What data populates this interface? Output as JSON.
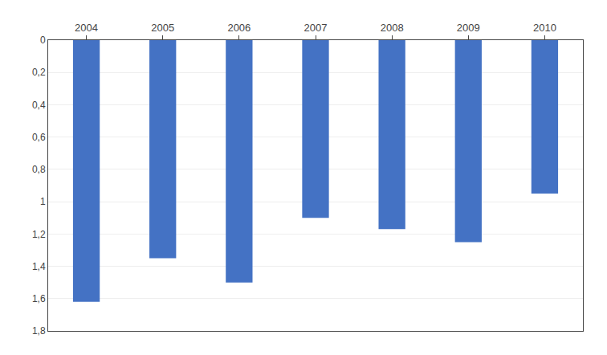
{
  "chart_data": {
    "type": "bar",
    "categories": [
      "2004",
      "2005",
      "2006",
      "2007",
      "2008",
      "2009",
      "2010"
    ],
    "values": [
      1.62,
      1.35,
      1.5,
      1.1,
      1.17,
      1.25,
      0.95
    ],
    "color": "#4472C4",
    "ylim": [
      1.8,
      0.0
    ],
    "yticks": [
      0,
      {
        "value": 0.2,
        "label": "0,2"
      },
      {
        "value": 0.4,
        "label": "0,4"
      },
      {
        "value": 0.6,
        "label": "0,6"
      },
      {
        "value": 0.8,
        "label": "0,8"
      },
      1,
      {
        "value": 1.2,
        "label": "1,2"
      },
      {
        "value": 1.4,
        "label": "1,4"
      },
      {
        "value": 1.6,
        "label": "1,6"
      },
      {
        "value": 1.8,
        "label": "1,8"
      }
    ],
    "grid": true
  }
}
